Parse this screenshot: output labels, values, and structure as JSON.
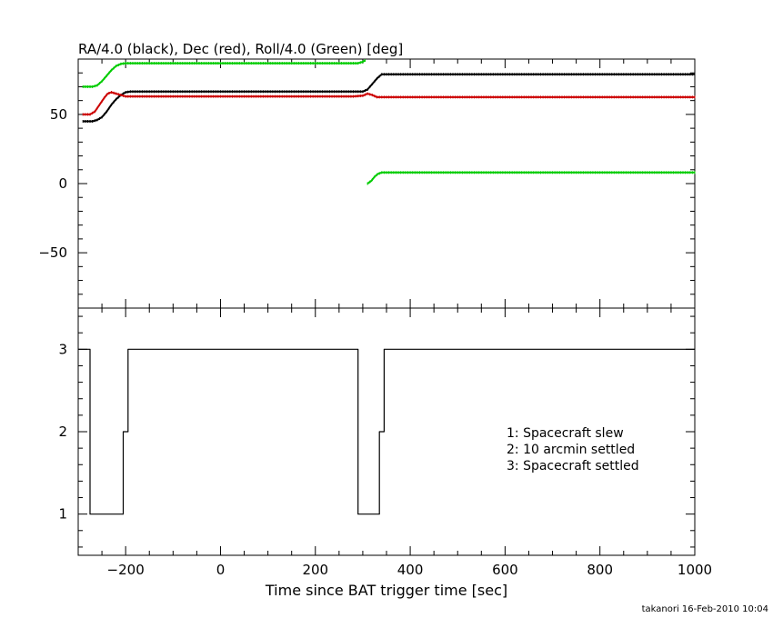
{
  "chart_data": [
    {
      "type": "line",
      "title": "RA/4.0 (black), Dec (red), Roll/4.0 (Green) [deg]",
      "xlim": [
        -300,
        1000
      ],
      "ylim": [
        -90,
        90
      ],
      "yticks": [
        -50,
        0,
        50
      ],
      "yticklabels": [
        "−50",
        "0",
        "50"
      ],
      "series": [
        {
          "color": "#000000",
          "x": [
            -290,
            -270,
            -260,
            -250,
            -240,
            -230,
            -220,
            -210,
            -200,
            -190,
            -180,
            100,
            280,
            300,
            310,
            320,
            330,
            340,
            360,
            1000
          ],
          "y": [
            45,
            45,
            46,
            48,
            52,
            57,
            61,
            64,
            66,
            66.5,
            66.5,
            66.5,
            66.5,
            66.5,
            68,
            72,
            76,
            79,
            79,
            79
          ]
        },
        {
          "color": "#cc0000",
          "x": [
            -290,
            -275,
            -265,
            -255,
            -245,
            -238,
            -230,
            -220,
            -210,
            -200,
            -180,
            100,
            280,
            300,
            310,
            320,
            330,
            340,
            1000
          ],
          "y": [
            50,
            50,
            52,
            57,
            62,
            65,
            66,
            65,
            64,
            63,
            63,
            63,
            63,
            63.5,
            65,
            64,
            62.5,
            62.5,
            62.5
          ]
        },
        {
          "color": "#00cc00",
          "x": [
            -290,
            -270,
            -260,
            -250,
            -240,
            -230,
            -220,
            -210,
            -200,
            -180,
            100,
            290,
            300,
            305
          ],
          "y": [
            70,
            70,
            71,
            74,
            78,
            82,
            85,
            86.5,
            87,
            87,
            87,
            87,
            88,
            89
          ]
        },
        {
          "color": "#00cc00",
          "x": [
            310,
            318,
            325,
            332,
            340,
            360,
            1000
          ],
          "y": [
            0,
            2,
            5,
            7,
            8,
            8,
            8
          ]
        }
      ]
    },
    {
      "type": "line",
      "xlim": [
        -300,
        1000
      ],
      "ylim": [
        0.5,
        3.5
      ],
      "xlabel": "Time since BAT trigger time [sec]",
      "xticks": [
        -200,
        0,
        200,
        400,
        600,
        800,
        1000
      ],
      "xticklabels": [
        "−200",
        "0",
        "200",
        "400",
        "600",
        "800",
        "1000"
      ],
      "yticks": [
        1,
        2,
        3
      ],
      "yticklabels": [
        "1",
        "2",
        "3"
      ],
      "series": [
        {
          "color": "#000000",
          "step": true,
          "x": [
            -300,
            -275,
            -205,
            -195,
            290,
            335,
            345,
            1000
          ],
          "y": [
            3,
            1,
            2,
            3,
            1,
            2,
            3,
            3
          ]
        }
      ],
      "annotations": [
        "1: Spacecraft slew",
        "2: 10 arcmin settled",
        "3: Spacecraft settled"
      ]
    }
  ],
  "footer": "takanori 16-Feb-2010 10:04"
}
